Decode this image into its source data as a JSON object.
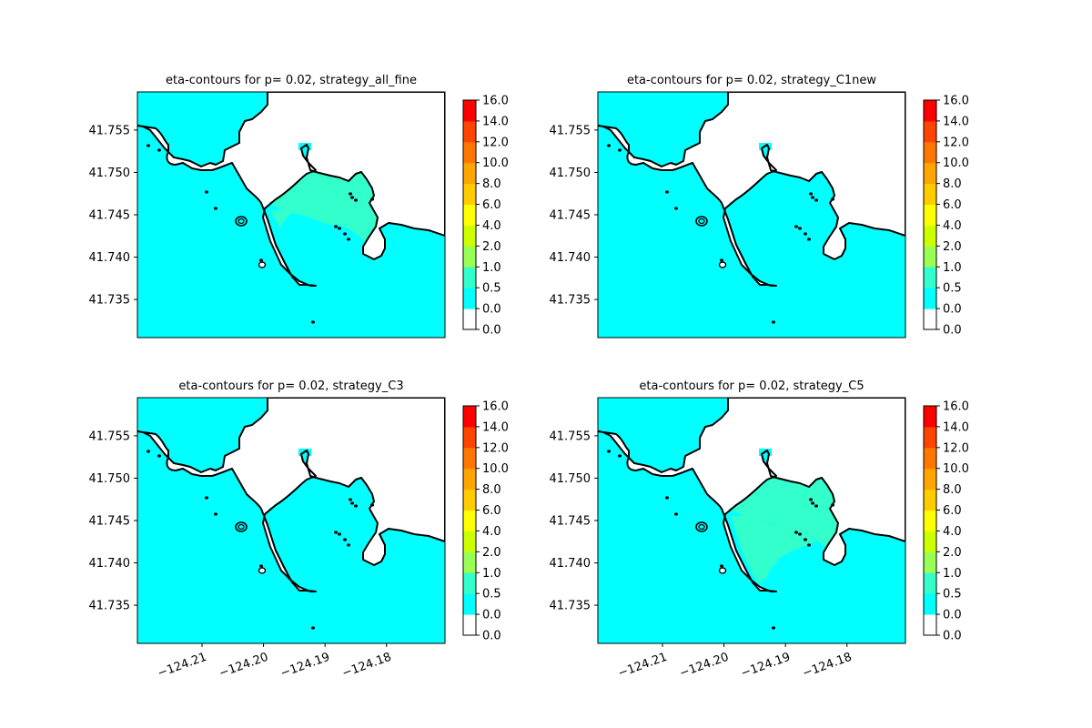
{
  "chart_data": {
    "type": "contour",
    "colorbar": {
      "levels": [
        "0.0",
        "0.0",
        "0.5",
        "1.0",
        "2.0",
        "4.0",
        "6.0",
        "8.0",
        "10.0",
        "12.0",
        "14.0",
        "16.0"
      ],
      "colors": [
        "#ffffff",
        "#00ffff",
        "#33ffcc",
        "#99ff55",
        "#ccff00",
        "#ffff00",
        "#ffcc00",
        "#ffa500",
        "#ff7700",
        "#ff4400",
        "#ff0000"
      ]
    },
    "xlim": [
      -124.2205,
      -124.1705
    ],
    "ylim": [
      41.7305,
      41.7595
    ],
    "xticks": [
      -124.21,
      -124.2,
      -124.19,
      -124.18
    ],
    "xtick_labels": [
      "−124.21",
      "−124.20",
      "−124.19",
      "−124.18"
    ],
    "yticks": [
      41.735,
      41.74,
      41.745,
      41.75,
      41.755
    ],
    "ytick_labels": [
      "41.735",
      "41.740",
      "41.745",
      "41.750",
      "41.755"
    ],
    "panels": [
      {
        "title": "eta-contours for p= 0.02, strategy_all_fine",
        "harbor_level": "0.5-1.0",
        "inner_extent": "partial"
      },
      {
        "title": "eta-contours for p= 0.02, strategy_C1new",
        "harbor_level": "0.0-0.5",
        "inner_extent": "none"
      },
      {
        "title": "eta-contours for p= 0.02, strategy_C3",
        "harbor_level": "0.0-0.5",
        "inner_extent": "none"
      },
      {
        "title": "eta-contours for p= 0.02, strategy_C5",
        "harbor_level": "0.5-1.0",
        "inner_extent": "full"
      }
    ]
  }
}
